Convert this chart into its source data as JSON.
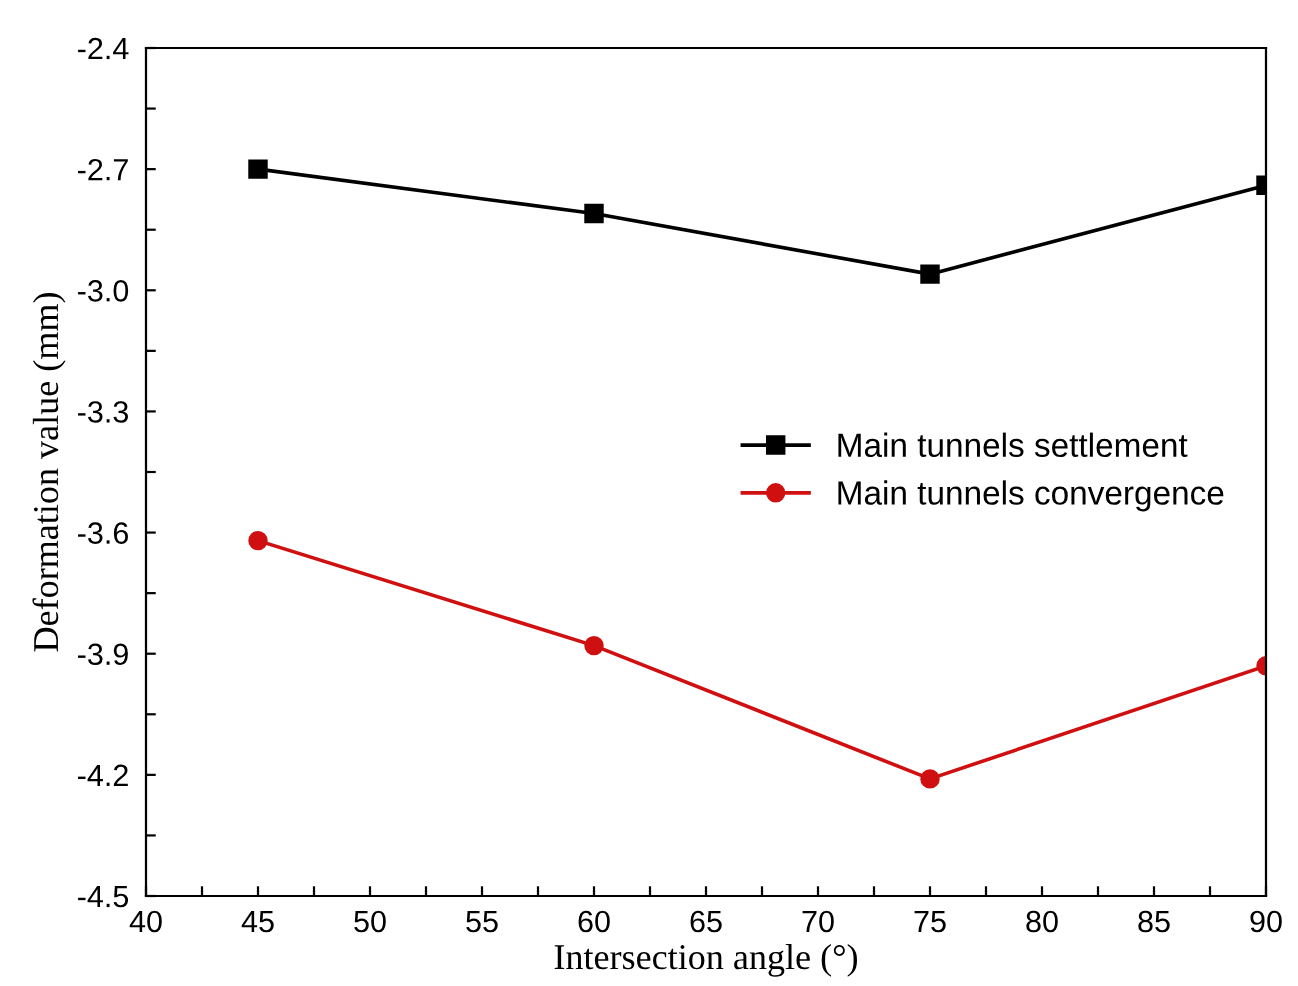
{
  "chart_data": {
    "type": "line",
    "xlabel": "Intersection angle (°)",
    "ylabel": "Deformation value (mm)",
    "x": [
      45,
      60,
      75,
      90
    ],
    "series": [
      {
        "name": "Main tunnels settlement",
        "color": "#000000",
        "marker": "square",
        "values": [
          -2.7,
          -2.81,
          -2.96,
          -2.74
        ]
      },
      {
        "name": "Main tunnels convergence",
        "color": "#d01010",
        "marker": "circle",
        "values": [
          -3.62,
          -3.88,
          -4.21,
          -3.93
        ]
      }
    ],
    "xlim": [
      40,
      90
    ],
    "xticks": [
      40,
      {
        "value": 42.5,
        "label": null
      },
      45,
      {
        "value": 47.5,
        "label": null
      },
      50,
      {
        "value": 52.5,
        "label": null
      },
      55,
      {
        "value": 57.5,
        "label": null
      },
      60,
      {
        "value": 62.5,
        "label": null
      },
      65,
      {
        "value": 67.5,
        "label": null
      },
      70,
      {
        "value": 72.5,
        "label": null
      },
      75,
      {
        "value": 77.5,
        "label": null
      },
      80,
      {
        "value": 82.5,
        "label": null
      },
      85,
      {
        "value": 87.5,
        "label": null
      },
      90
    ],
    "ylim": [
      -4.5,
      -2.4
    ],
    "yticks": [
      {
        "value": -4.5,
        "label": "-4.5"
      },
      {
        "value": -4.35,
        "label": null
      },
      {
        "value": -4.2,
        "label": "-4.2"
      },
      {
        "value": -4.05,
        "label": null
      },
      {
        "value": -3.9,
        "label": "-3.9"
      },
      {
        "value": -3.75,
        "label": null
      },
      {
        "value": -3.6,
        "label": "-3.6"
      },
      {
        "value": -3.45,
        "label": null
      },
      {
        "value": -3.3,
        "label": "-3.3"
      },
      {
        "value": -3.15,
        "label": null
      },
      {
        "value": -3.0,
        "label": "-3.0"
      },
      {
        "value": -2.85,
        "label": null
      },
      {
        "value": -2.7,
        "label": "-2.7"
      },
      {
        "value": -2.55,
        "label": null
      },
      {
        "value": -2.4,
        "label": "-2.4"
      }
    ],
    "grid": false,
    "legend": "right",
    "line_style": "solid"
  }
}
